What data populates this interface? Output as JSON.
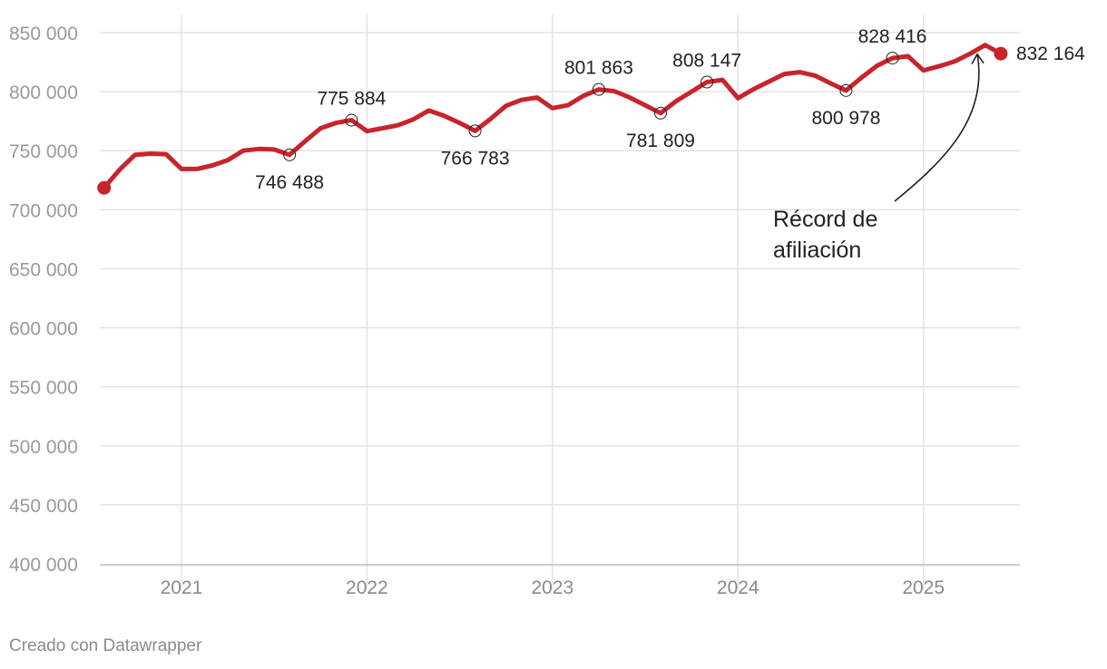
{
  "credit": "Creado con Datawrapper",
  "colors": {
    "line": "#c8242b",
    "grid": "#e3e3e3",
    "axis": "#bdbdbd"
  },
  "chart_data": {
    "type": "line",
    "title": "",
    "xlabel": "",
    "ylabel": "",
    "ylim": [
      400000,
      850000
    ],
    "xlim": [
      2020.56,
      2025.52
    ],
    "yticks": [
      400000,
      450000,
      500000,
      550000,
      600000,
      650000,
      700000,
      750000,
      800000,
      850000
    ],
    "ytick_labels": [
      "400 000",
      "450 000",
      "500 000",
      "550 000",
      "600 000",
      "650 000",
      "700 000",
      "750 000",
      "800 000",
      "850 000"
    ],
    "xticks": [
      2021,
      2022,
      2023,
      2024,
      2025
    ],
    "xtick_labels": [
      "2021",
      "2022",
      "2023",
      "2024",
      "2025"
    ],
    "grid": true,
    "series": [
      {
        "name": "Afiliación",
        "x": [
          2020.583,
          2020.667,
          2020.75,
          2020.833,
          2020.917,
          2021.0,
          2021.083,
          2021.167,
          2021.25,
          2021.333,
          2021.417,
          2021.5,
          2021.583,
          2021.667,
          2021.75,
          2021.833,
          2021.917,
          2022.0,
          2022.083,
          2022.167,
          2022.25,
          2022.333,
          2022.417,
          2022.5,
          2022.583,
          2022.667,
          2022.75,
          2022.833,
          2022.917,
          2023.0,
          2023.083,
          2023.167,
          2023.25,
          2023.333,
          2023.417,
          2023.5,
          2023.583,
          2023.667,
          2023.75,
          2023.833,
          2023.917,
          2024.0,
          2024.083,
          2024.167,
          2024.25,
          2024.333,
          2024.417,
          2024.5,
          2024.583,
          2024.667,
          2024.75,
          2024.833,
          2024.917,
          2025.0,
          2025.083,
          2025.167,
          2025.25,
          2025.333,
          2025.417
        ],
        "values": [
          718500,
          734000,
          746500,
          747500,
          747000,
          734500,
          734500,
          737500,
          742000,
          750000,
          751500,
          751000,
          746488,
          758000,
          769000,
          773500,
          775884,
          766500,
          769000,
          771500,
          776500,
          784000,
          779500,
          773500,
          766783,
          777000,
          788000,
          793000,
          795000,
          786000,
          788500,
          796500,
          801863,
          800500,
          795000,
          788500,
          781809,
          792000,
          800000,
          808147,
          810000,
          794500,
          802000,
          808500,
          815000,
          816500,
          813500,
          807000,
          800978,
          812000,
          822000,
          828416,
          830000,
          818000,
          821500,
          825500,
          832000,
          839500,
          832164
        ]
      }
    ],
    "point_labels": [
      {
        "x": 2021.583,
        "y": 746488,
        "label": "746 488",
        "pos": "below"
      },
      {
        "x": 2021.917,
        "y": 775884,
        "label": "775 884",
        "pos": "above"
      },
      {
        "x": 2022.583,
        "y": 766783,
        "label": "766 783",
        "pos": "below"
      },
      {
        "x": 2023.25,
        "y": 801863,
        "label": "801 863",
        "pos": "above"
      },
      {
        "x": 2023.583,
        "y": 781809,
        "label": "781 809",
        "pos": "below"
      },
      {
        "x": 2023.833,
        "y": 808147,
        "label": "808 147",
        "pos": "above"
      },
      {
        "x": 2024.583,
        "y": 800978,
        "label": "800 978",
        "pos": "below"
      },
      {
        "x": 2024.833,
        "y": 828416,
        "label": "828 416",
        "pos": "above"
      }
    ],
    "end_label": {
      "x": 2025.417,
      "y": 832164,
      "label": "832 164"
    },
    "annotations": [
      {
        "lines": [
          "Récord de",
          "afiliación"
        ],
        "points_to": {
          "x": 2025.3,
          "y": 839500
        }
      }
    ]
  }
}
